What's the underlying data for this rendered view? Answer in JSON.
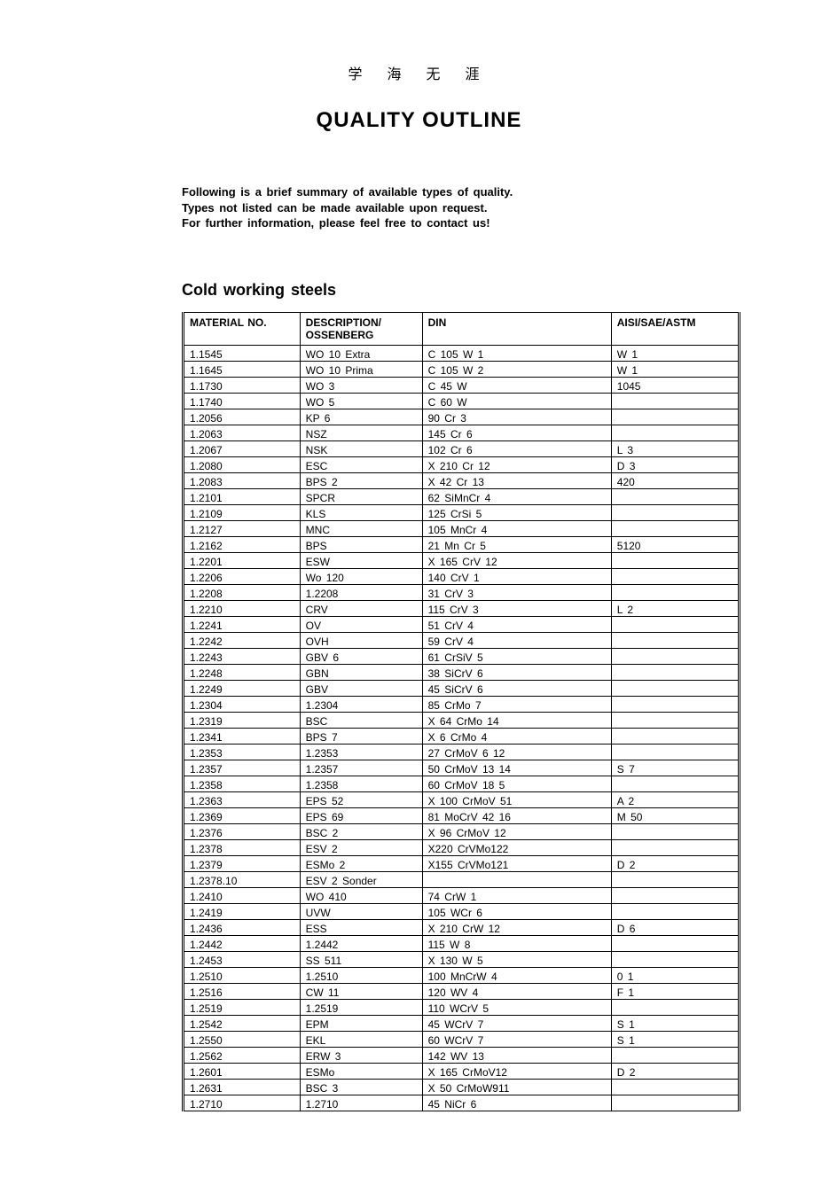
{
  "header_chars": "学 海 无 涯",
  "title": "QUALITY OUTLINE",
  "intro_lines": [
    "Following is a brief summary of available types of quality.",
    "Types not listed can be made available upon request.",
    "For further information, please feel free to contact us!"
  ],
  "section_heading": "Cold working steels",
  "table": {
    "columns": [
      "MATERIAL NO.",
      "DESCRIPTION/\nOSSENBERG",
      "DIN",
      "AISI/SAE/ASTM"
    ],
    "rows": [
      [
        "1.1545",
        "WO 10 Extra",
        "C 105 W 1",
        "W 1"
      ],
      [
        "1.1645",
        "WO 10 Prima",
        "C 105 W 2",
        "W 1"
      ],
      [
        "1.1730",
        "WO 3",
        "C 45 W",
        "1045"
      ],
      [
        "1.1740",
        "WO 5",
        "C 60 W",
        ""
      ],
      [
        "1.2056",
        "KP 6",
        "90 Cr 3",
        ""
      ],
      [
        "1.2063",
        "NSZ",
        "145 Cr 6",
        ""
      ],
      [
        "1.2067",
        "NSK",
        "102 Cr 6",
        "L 3"
      ],
      [
        "1.2080",
        "ESC",
        "X 210 Cr 12",
        "D 3"
      ],
      [
        "1.2083",
        "BPS 2",
        "X 42 Cr 13",
        "420"
      ],
      [
        "1.2101",
        "SPCR",
        "62 SiMnCr 4",
        ""
      ],
      [
        "1.2109",
        "KLS",
        "125 CrSi 5",
        ""
      ],
      [
        "1.2127",
        "MNC",
        "105 MnCr 4",
        ""
      ],
      [
        "1.2162",
        "BPS",
        "21 Mn Cr 5",
        "5120"
      ],
      [
        "1.2201",
        "ESW",
        "X 165 CrV 12",
        ""
      ],
      [
        "1.2206",
        "Wo 120",
        "140 CrV 1",
        ""
      ],
      [
        "1.2208",
        "1.2208",
        "31 CrV 3",
        ""
      ],
      [
        "1.2210",
        "CRV",
        "115 CrV 3",
        "L 2"
      ],
      [
        "1.2241",
        "OV",
        "51 CrV 4",
        ""
      ],
      [
        "1.2242",
        "OVH",
        "59 CrV 4",
        ""
      ],
      [
        "1.2243",
        "GBV 6",
        "61 CrSiV 5",
        ""
      ],
      [
        "1.2248",
        "GBN",
        "38 SiCrV 6",
        ""
      ],
      [
        "1.2249",
        "GBV",
        "45 SiCrV 6",
        ""
      ],
      [
        "1.2304",
        "1.2304",
        "85 CrMo 7",
        ""
      ],
      [
        "1.2319",
        "BSC",
        "X 64 CrMo 14",
        ""
      ],
      [
        "1.2341",
        "BPS 7",
        "X 6 CrMo 4",
        ""
      ],
      [
        "1.2353",
        "1.2353",
        "27 CrMoV 6 12",
        ""
      ],
      [
        "1.2357",
        "1.2357",
        "50 CrMoV 13 14",
        "S 7"
      ],
      [
        "1.2358",
        "1.2358",
        "60 CrMoV 18 5",
        ""
      ],
      [
        "1.2363",
        "EPS 52",
        "X 100 CrMoV 51",
        "A 2"
      ],
      [
        "1.2369",
        "EPS 69",
        "81 MoCrV 42 16",
        "M 50"
      ],
      [
        "1.2376",
        "BSC 2",
        "X 96 CrMoV 12",
        ""
      ],
      [
        "1.2378",
        "ESV 2",
        "X220 CrVMo122",
        ""
      ],
      [
        "1.2379",
        "ESMo 2",
        "X155 CrVMo121",
        "D 2"
      ],
      [
        "1.2378.10",
        "ESV 2 Sonder",
        "",
        ""
      ],
      [
        "1.2410",
        "WO 410",
        "74 CrW 1",
        ""
      ],
      [
        "1.2419",
        "UVW",
        "105 WCr 6",
        ""
      ],
      [
        "1.2436",
        "ESS",
        "X 210 CrW 12",
        "D 6"
      ],
      [
        "1.2442",
        "1.2442",
        "115 W 8",
        ""
      ],
      [
        "1.2453",
        "SS 511",
        "X 130 W 5",
        ""
      ],
      [
        "1.2510",
        "1.2510",
        "100 MnCrW 4",
        "0 1"
      ],
      [
        "1.2516",
        "CW 11",
        "120 WV 4",
        "F 1"
      ],
      [
        "1.2519",
        "1.2519",
        "110 WCrV 5",
        ""
      ],
      [
        "1.2542",
        "EPM",
        "45 WCrV 7",
        "S 1"
      ],
      [
        "1.2550",
        "EKL",
        "60 WCrV 7",
        "S 1"
      ],
      [
        "1.2562",
        "ERW 3",
        "142 WV 13",
        ""
      ],
      [
        "1.2601",
        "ESMo",
        "X 165 CrMoV12",
        "D 2"
      ],
      [
        "1.2631",
        "BSC 3",
        "X 50 CrMoW911",
        ""
      ],
      [
        "1.2710",
        "1.2710",
        "45 NiCr 6",
        ""
      ]
    ]
  },
  "styling": {
    "page_bg": "#ffffff",
    "text_color": "#000000",
    "border_color": "#000000",
    "title_fontsize": 24,
    "section_heading_fontsize": 18,
    "intro_fontsize": 13,
    "table_fontsize": 12,
    "col_widths_pct": [
      21,
      22,
      34,
      23
    ]
  }
}
